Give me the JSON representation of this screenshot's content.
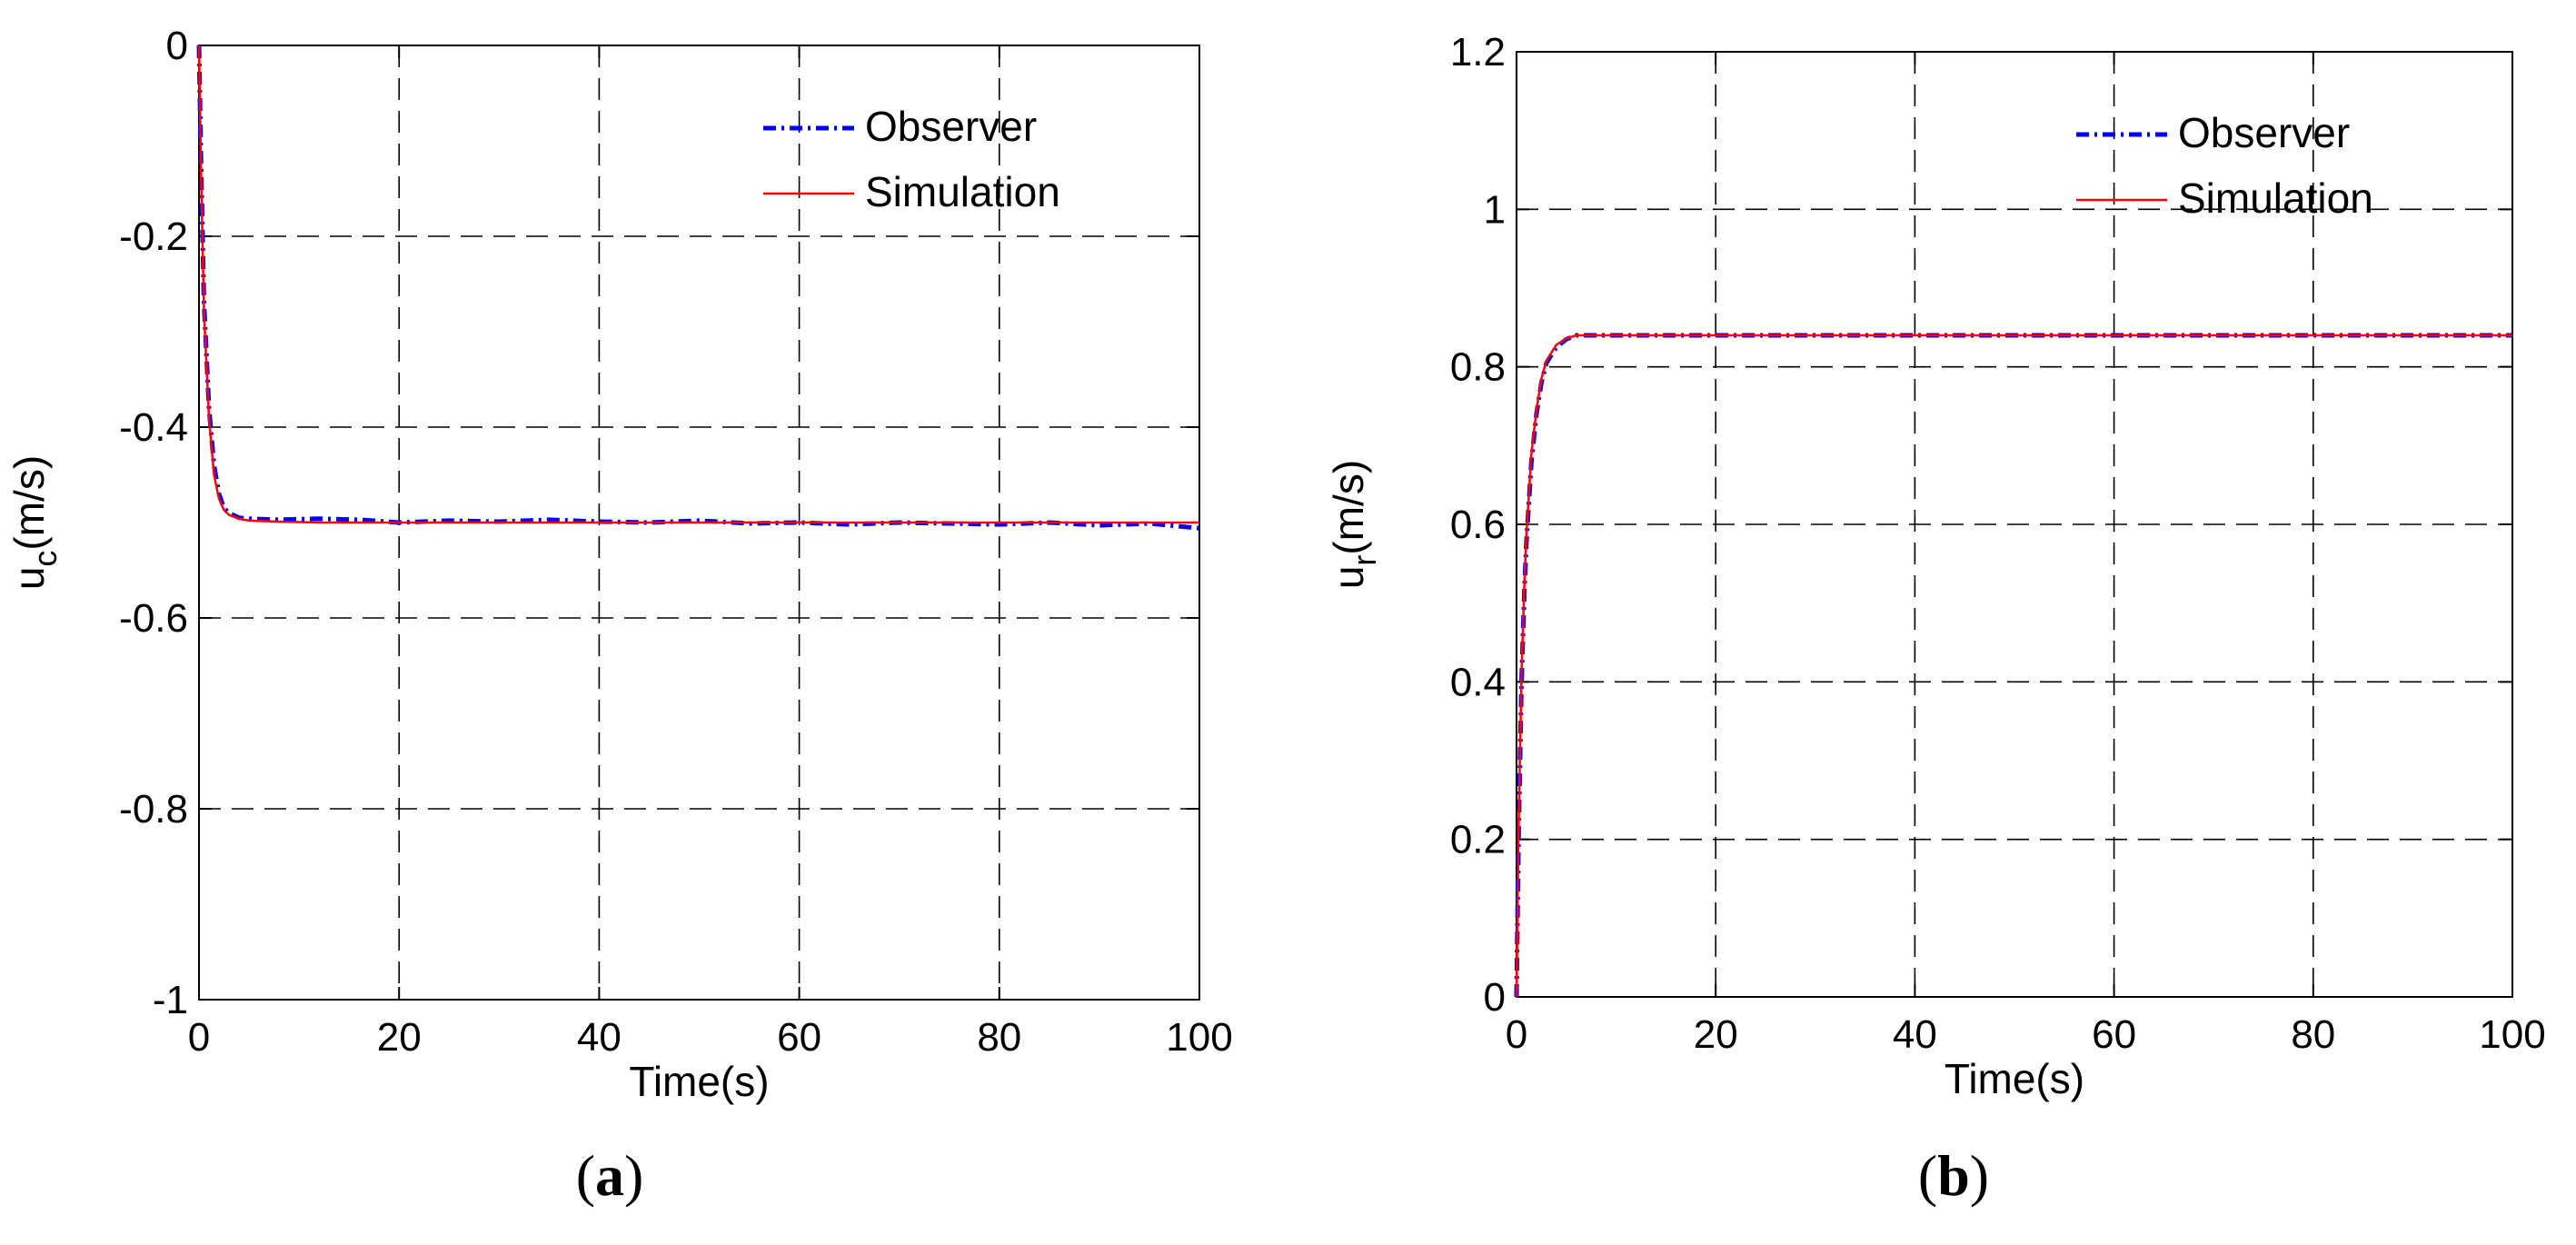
{
  "chart_data": [
    {
      "type": "line",
      "panel_label": "a",
      "title": "",
      "xlabel": "Time(s)",
      "ylabel_main": "u",
      "ylabel_sub": "c",
      "ylabel_unit": "(m/s)",
      "xlim": [
        0,
        100
      ],
      "ylim": [
        -1,
        0
      ],
      "xticks": [
        0,
        20,
        40,
        60,
        80,
        100
      ],
      "yticks": [
        -1,
        -0.8,
        -0.6,
        -0.4,
        -0.2,
        0
      ],
      "xtick_labels": [
        "0",
        "20",
        "40",
        "60",
        "80",
        "100"
      ],
      "ytick_labels": [
        "-1",
        "-0.8",
        "-0.6",
        "-0.4",
        "-0.2",
        "0"
      ],
      "grid": true,
      "legend": "top-right",
      "series": [
        {
          "name": "Observer",
          "color": "#0000ff",
          "style": "dash-dot",
          "x": [
            0,
            0.2,
            0.5,
            1,
            1.5,
            2,
            2.5,
            3,
            4,
            5,
            8,
            12,
            16,
            20,
            25,
            30,
            35,
            40,
            45,
            50,
            55,
            60,
            65,
            70,
            75,
            80,
            85,
            90,
            95,
            100
          ],
          "y": [
            0,
            -0.12,
            -0.27,
            -0.38,
            -0.44,
            -0.47,
            -0.485,
            -0.49,
            -0.495,
            -0.496,
            -0.497,
            -0.496,
            -0.497,
            -0.5,
            -0.498,
            -0.499,
            -0.497,
            -0.499,
            -0.5,
            -0.498,
            -0.501,
            -0.5,
            -0.502,
            -0.5,
            -0.501,
            -0.502,
            -0.5,
            -0.503,
            -0.501,
            -0.506
          ]
        },
        {
          "name": "Simulation",
          "color": "#ff0000",
          "style": "solid",
          "x": [
            0,
            0.2,
            0.5,
            1,
            1.5,
            2,
            2.5,
            3,
            4,
            5,
            8,
            12,
            16,
            20,
            30,
            40,
            50,
            60,
            70,
            80,
            90,
            100
          ],
          "y": [
            0,
            -0.13,
            -0.28,
            -0.39,
            -0.45,
            -0.475,
            -0.487,
            -0.492,
            -0.496,
            -0.498,
            -0.499,
            -0.5,
            -0.5,
            -0.5,
            -0.5,
            -0.5,
            -0.5,
            -0.5,
            -0.5,
            -0.5,
            -0.5,
            -0.5
          ]
        }
      ]
    },
    {
      "type": "line",
      "panel_label": "b",
      "title": "",
      "xlabel": "Time(s)",
      "ylabel_main": "u",
      "ylabel_sub": "r",
      "ylabel_unit": "(m/s)",
      "xlim": [
        0,
        100
      ],
      "ylim": [
        0,
        1.2
      ],
      "xticks": [
        0,
        20,
        40,
        60,
        80,
        100
      ],
      "yticks": [
        0,
        0.2,
        0.4,
        0.6,
        0.8,
        1,
        1.2
      ],
      "xtick_labels": [
        "0",
        "20",
        "40",
        "60",
        "80",
        "100"
      ],
      "ytick_labels": [
        "0",
        "0.2",
        "0.4",
        "0.6",
        "0.8",
        "1",
        "1.2"
      ],
      "grid": true,
      "legend": "top-right",
      "series": [
        {
          "name": "Observer",
          "color": "#0000ff",
          "style": "dash-dot",
          "x": [
            0,
            0.2,
            0.5,
            0.8,
            1,
            1.5,
            2,
            2.5,
            3,
            4,
            5,
            6,
            8,
            10,
            20,
            30,
            40,
            50,
            60,
            70,
            80,
            90,
            100
          ],
          "y": [
            0,
            0.2,
            0.4,
            0.52,
            0.58,
            0.68,
            0.74,
            0.78,
            0.805,
            0.825,
            0.835,
            0.84,
            0.84,
            0.84,
            0.84,
            0.84,
            0.84,
            0.84,
            0.84,
            0.84,
            0.84,
            0.84,
            0.84
          ]
        },
        {
          "name": "Simulation",
          "color": "#ff0000",
          "style": "solid",
          "x": [
            0,
            0.2,
            0.5,
            0.8,
            1,
            1.5,
            2,
            2.5,
            3,
            4,
            5,
            6,
            8,
            10,
            20,
            30,
            40,
            50,
            60,
            70,
            80,
            90,
            100
          ],
          "y": [
            0,
            0.21,
            0.41,
            0.53,
            0.59,
            0.69,
            0.745,
            0.785,
            0.808,
            0.828,
            0.836,
            0.84,
            0.84,
            0.84,
            0.84,
            0.84,
            0.84,
            0.84,
            0.84,
            0.84,
            0.84,
            0.84,
            0.84
          ]
        }
      ]
    }
  ]
}
